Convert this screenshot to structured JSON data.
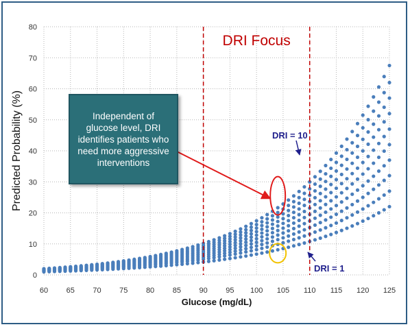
{
  "chart_data": {
    "type": "scatter",
    "xlabel": "Glucose (mg/dL)",
    "ylabel": "Predicted  Probability  (%)",
    "xlim": [
      60,
      125
    ],
    "ylim": [
      0,
      80
    ],
    "xticks": [
      60,
      65,
      70,
      75,
      80,
      85,
      90,
      95,
      100,
      105,
      110,
      115,
      120,
      125
    ],
    "yticks": [
      0,
      10,
      20,
      30,
      40,
      50,
      60,
      70,
      80
    ],
    "grid": "vertical and horizontal dotted",
    "point_color": "#4a7ebb",
    "series_model": {
      "dri_values": [
        1,
        2,
        3,
        4,
        5,
        6,
        7,
        8,
        9,
        10
      ],
      "x_start": 60,
      "x_end": 125,
      "x_step": 1,
      "y_at_60": [
        1.0,
        1.2,
        1.3,
        1.4,
        1.5,
        1.6,
        1.7,
        1.8,
        1.9,
        2.0
      ],
      "y_at_125": [
        22,
        27,
        32,
        37,
        42,
        47,
        52,
        57,
        62,
        67.5
      ]
    },
    "annotations": {
      "focus_title": "DRI Focus",
      "focus_range": [
        90,
        110
      ],
      "dri_top_label": "DRI = 10",
      "dri_bottom_label": "DRI = 1",
      "callout_text": "Independent of glucose level, DRI identifies patients who need more aggressive interventions",
      "red_ellipse_center": [
        104,
        25.5
      ],
      "yellow_ellipse_center": [
        104,
        7
      ]
    },
    "colors": {
      "focus_line": "#c00000",
      "focus_title": "#c00000",
      "dri_label": "#1f1f8c",
      "callout_bg": "#2b6f78",
      "red_ellipse": "#e01b1b",
      "yellow_ellipse": "#f2c200",
      "frame": "#2d5c84"
    }
  }
}
